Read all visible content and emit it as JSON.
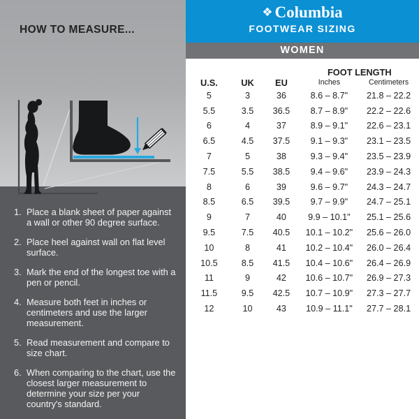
{
  "left": {
    "title": "HOW TO MEASURE...",
    "illustration": {
      "description": "silhouette of person standing heel against wall, magnified foot on paper with pencil marking toe",
      "accent_blue": "#29a8e0",
      "silhouette_color": "#17181a"
    },
    "instructions": [
      {
        "num": "1.",
        "text": "Place a blank sheet of paper against a wall or other 90 degree surface."
      },
      {
        "num": "2.",
        "text": "Place heel against wall on flat level surface."
      },
      {
        "num": "3.",
        "text": "Mark the end of the longest toe with a pen or pencil."
      },
      {
        "num": "4.",
        "text": "Measure both feet in inches or centimeters and use the larger measurement."
      },
      {
        "num": "5.",
        "text": "Read measurement and compare to size chart."
      },
      {
        "num": "6.",
        "text": "When comparing to the chart, use the closest larger measurement to determine your size per your country's standard."
      }
    ],
    "panel_dark": "#595a5d",
    "panel_gray": "#aaacae"
  },
  "header": {
    "brand": "Columbia",
    "gem_glyph": "❖",
    "subtitle": "FOOTWEAR SIZING",
    "section": "WOMEN",
    "blue": "#0a90d3",
    "bar_gray": "#707275"
  },
  "table": {
    "columns": [
      "U.S.",
      "UK",
      "EU"
    ],
    "group_header": "FOOT LENGTH",
    "subcolumns": [
      "Inches",
      "Centimeters"
    ],
    "rows": [
      [
        "5",
        "3",
        "36",
        "8.6 – 8.7\"",
        "21.8 – 22.2"
      ],
      [
        "5.5",
        "3.5",
        "36.5",
        "8.7 – 8.9\"",
        "22.2 – 22.6"
      ],
      [
        "6",
        "4",
        "37",
        "8.9 – 9.1\"",
        "22.6 – 23.1"
      ],
      [
        "6.5",
        "4.5",
        "37.5",
        "9.1 – 9.3\"",
        "23.1 – 23.5"
      ],
      [
        "7",
        "5",
        "38",
        "9.3 – 9.4\"",
        "23.5 – 23.9"
      ],
      [
        "7.5",
        "5.5",
        "38.5",
        "9.4 – 9.6\"",
        "23.9 – 24.3"
      ],
      [
        "8",
        "6",
        "39",
        "9.6 – 9.7\"",
        "24.3 – 24.7"
      ],
      [
        "8.5",
        "6.5",
        "39.5",
        "9.7 – 9.9\"",
        "24.7 – 25.1"
      ],
      [
        "9",
        "7",
        "40",
        "9.9 – 10.1\"",
        "25.1 – 25.6"
      ],
      [
        "9.5",
        "7.5",
        "40.5",
        "10.1 – 10.2\"",
        "25.6 – 26.0"
      ],
      [
        "10",
        "8",
        "41",
        "10.2 – 10.4\"",
        "26.0 – 26.4"
      ],
      [
        "10.5",
        "8.5",
        "41.5",
        "10.4 – 10.6\"",
        "26.4 – 26.9"
      ],
      [
        "11",
        "9",
        "42",
        "10.6 – 10.7\"",
        "26.9 – 27.3"
      ],
      [
        "11.5",
        "9.5",
        "42.5",
        "10.7 – 10.9\"",
        "27.3 – 27.7"
      ],
      [
        "12",
        "10",
        "43",
        "10.9 – 11.1\"",
        "27.7 – 28.1"
      ]
    ]
  }
}
